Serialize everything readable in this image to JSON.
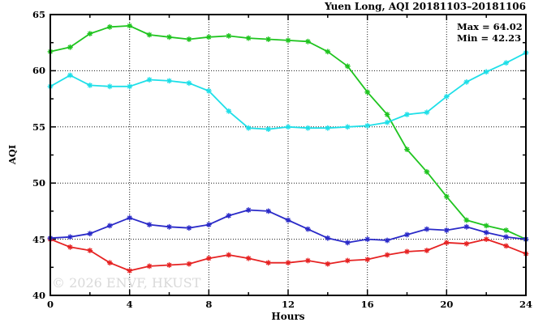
{
  "chart": {
    "title": "Yuen Long, AQI 20181103–20181106",
    "max_label": "Max = 64.02",
    "min_label": "Min = 42.23",
    "xlabel": "Hours",
    "ylabel": "AQI",
    "watermark": "© 2026 ENVF, HKUST"
  },
  "chart_data": {
    "type": "line",
    "title": "Yuen Long, AQI 20181103–20181106",
    "xlabel": "Hours",
    "ylabel": "AQI",
    "xlim": [
      0,
      24
    ],
    "ylim": [
      40,
      65
    ],
    "x_ticks": [
      0,
      4,
      8,
      12,
      16,
      20,
      24
    ],
    "y_ticks": [
      40,
      45,
      50,
      55,
      60,
      65
    ],
    "x_minor_ticks": [
      2,
      6,
      10,
      14,
      18,
      22
    ],
    "y_minor_ticks": [
      42.5,
      47.5,
      52.5,
      57.5,
      62.5
    ],
    "grid": "dotted-at-major-ticks",
    "legend": "none",
    "marker": "asterisk",
    "annotations": [
      "Max = 64.02",
      "Min = 42.23"
    ],
    "max_value": 64.02,
    "min_value": 42.23,
    "x": [
      0,
      1,
      2,
      3,
      4,
      5,
      6,
      7,
      8,
      9,
      10,
      11,
      12,
      13,
      14,
      15,
      16,
      17,
      18,
      19,
      20,
      21,
      22,
      23,
      24
    ],
    "series": [
      {
        "name": "green",
        "color": "#1fc41f",
        "values": [
          61.7,
          62.1,
          63.3,
          63.9,
          64.0,
          63.2,
          63.0,
          62.8,
          63.0,
          63.1,
          62.9,
          62.8,
          62.7,
          62.6,
          61.7,
          60.4,
          58.1,
          56.1,
          53.0,
          51.0,
          48.8,
          46.7,
          46.2,
          45.8,
          45.0
        ]
      },
      {
        "name": "cyan",
        "color": "#1edfe8",
        "values": [
          58.6,
          59.6,
          58.7,
          58.6,
          58.6,
          59.2,
          59.1,
          58.9,
          58.2,
          56.4,
          54.9,
          54.8,
          55.0,
          54.9,
          54.9,
          55.0,
          55.1,
          55.4,
          56.1,
          56.3,
          57.7,
          59.0,
          59.9,
          60.7,
          61.6
        ]
      },
      {
        "name": "red",
        "color": "#e62222",
        "values": [
          45.0,
          44.3,
          44.0,
          42.9,
          42.2,
          42.6,
          42.7,
          42.8,
          43.3,
          43.6,
          43.3,
          42.9,
          42.9,
          43.1,
          42.8,
          43.1,
          43.2,
          43.6,
          43.9,
          44.0,
          44.7,
          44.6,
          45.0,
          44.4,
          43.7
        ]
      },
      {
        "name": "blue",
        "color": "#2a2ac8",
        "values": [
          45.1,
          45.2,
          45.5,
          46.2,
          46.9,
          46.3,
          46.1,
          46.0,
          46.3,
          47.1,
          47.6,
          47.5,
          46.7,
          45.9,
          45.1,
          44.7,
          45.0,
          44.9,
          45.4,
          45.9,
          45.8,
          46.1,
          45.6,
          45.2,
          45.0
        ]
      }
    ]
  }
}
